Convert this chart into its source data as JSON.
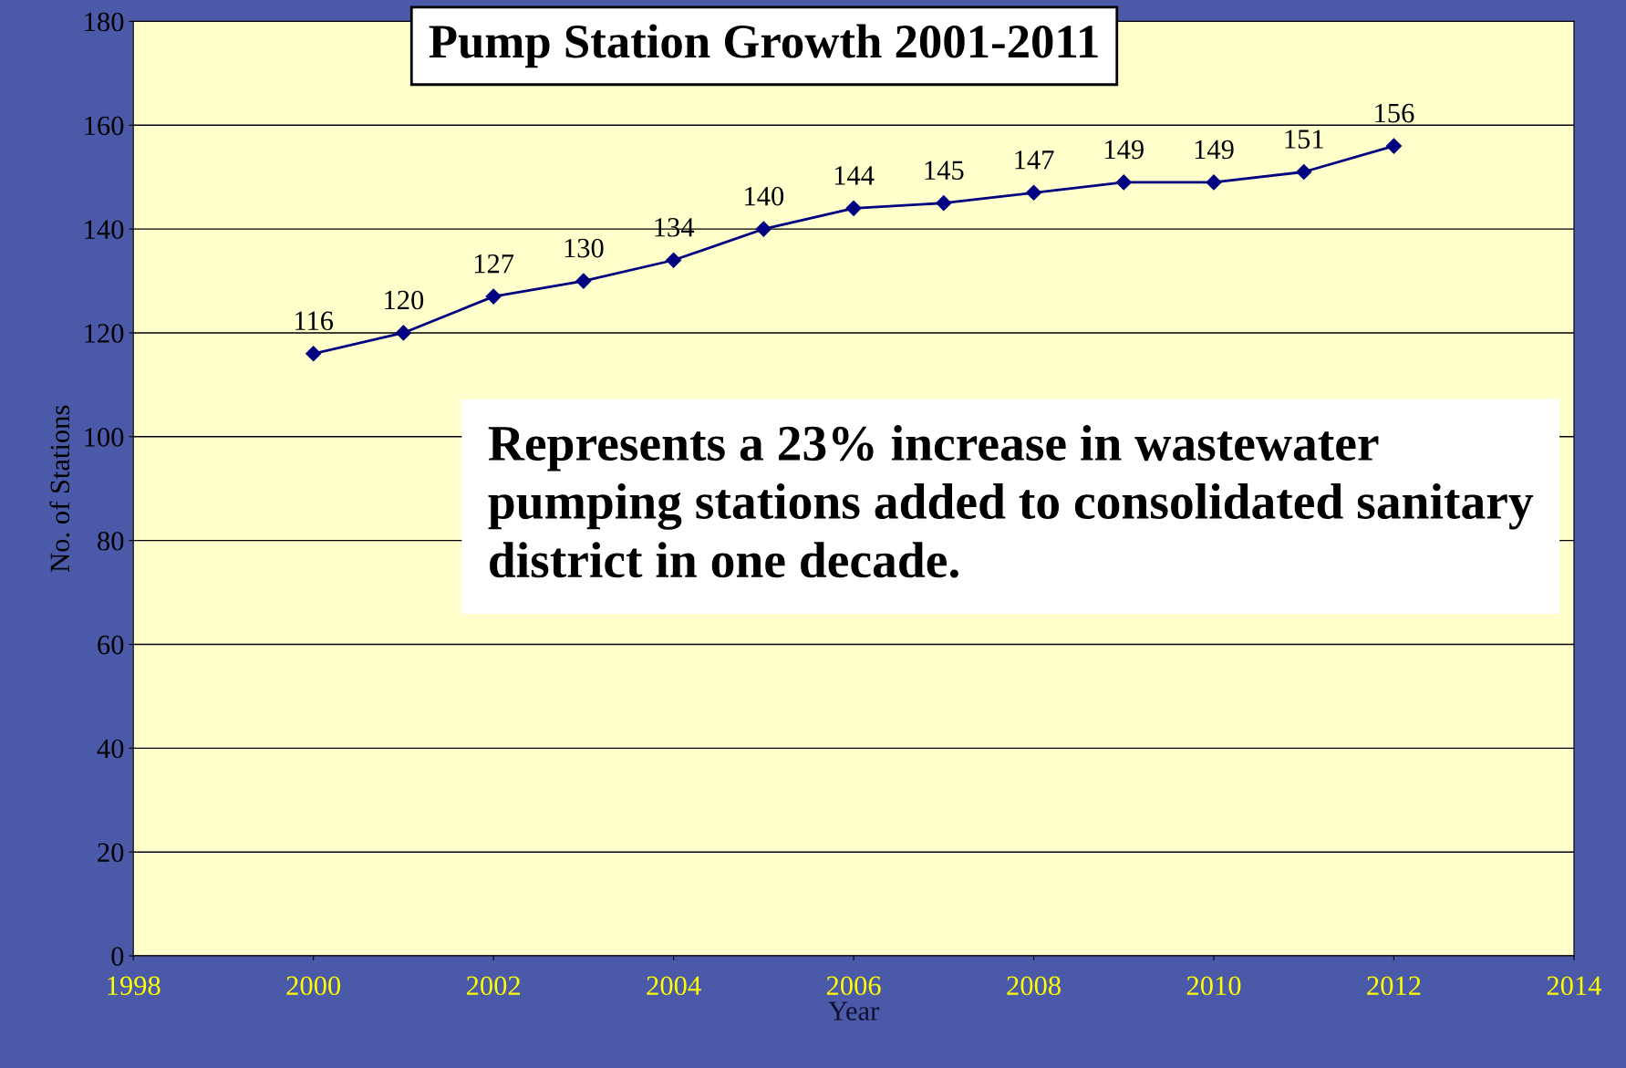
{
  "chart_data": {
    "type": "line",
    "title": "Pump Station Growth 2001-2011",
    "xlabel": "Year",
    "ylabel": "No. of Stations",
    "x": [
      2000,
      2001,
      2002,
      2003,
      2004,
      2005,
      2006,
      2007,
      2008,
      2009,
      2010,
      2011,
      2012
    ],
    "series": [
      {
        "color": "#000080",
        "values": [
          116,
          120,
          127,
          130,
          134,
          140,
          144,
          145,
          147,
          149,
          149,
          151,
          156
        ]
      }
    ],
    "xlim": [
      1998,
      2014
    ],
    "xticks": [
      1998,
      2000,
      2002,
      2004,
      2006,
      2008,
      2010,
      2012,
      2014
    ],
    "ylim": [
      0,
      180
    ],
    "yticks": [
      0,
      20,
      40,
      60,
      80,
      100,
      120,
      140,
      160,
      180
    ],
    "grid": "y",
    "marker": "diamond",
    "line_style": "solid",
    "data_labels": true,
    "annotations": [
      "Represents a 23% increase in wastewater pumping stations added to consolidated sanitary district in one decade."
    ]
  }
}
